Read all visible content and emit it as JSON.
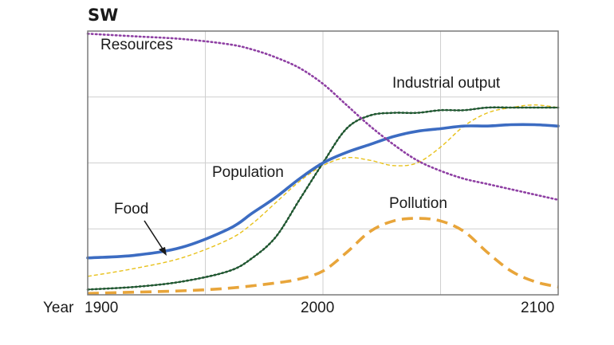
{
  "chart_data": {
    "type": "line",
    "title": "SW",
    "x_axis_label": "Year",
    "xlim": [
      1900,
      2100
    ],
    "ylim": [
      0,
      1
    ],
    "x_ticks": [
      1900,
      2000,
      2100
    ],
    "x_tick_labels": [
      "1900",
      "2000",
      "2100"
    ],
    "grid": true,
    "y_tick_labels_shown": false,
    "legend": "inline labels",
    "series": [
      {
        "name": "Resources",
        "color": "#8e3fa3",
        "style": "dotted",
        "x": [
          1900,
          1920,
          1940,
          1960,
          1970,
          1980,
          1990,
          2000,
          2010,
          2020,
          2030,
          2040,
          2050,
          2060,
          2070,
          2080,
          2090,
          2100
        ],
        "y": [
          0.99,
          0.98,
          0.97,
          0.95,
          0.93,
          0.9,
          0.86,
          0.8,
          0.72,
          0.64,
          0.57,
          0.51,
          0.47,
          0.44,
          0.42,
          0.4,
          0.38,
          0.36
        ]
      },
      {
        "name": "Industrial output",
        "color": "#1f5a31",
        "style": "dotted",
        "x": [
          1900,
          1920,
          1940,
          1960,
          1970,
          1980,
          1990,
          2000,
          2010,
          2020,
          2030,
          2040,
          2050,
          2060,
          2070,
          2080,
          2090,
          2100
        ],
        "y": [
          0.02,
          0.03,
          0.05,
          0.09,
          0.14,
          0.22,
          0.36,
          0.5,
          0.63,
          0.68,
          0.69,
          0.69,
          0.7,
          0.7,
          0.71,
          0.71,
          0.71,
          0.71
        ]
      },
      {
        "name": "Food",
        "color": "#e8c11a",
        "style": "dashed-thin",
        "x": [
          1900,
          1920,
          1940,
          1960,
          1970,
          1980,
          1990,
          2000,
          2010,
          2020,
          2030,
          2040,
          2050,
          2060,
          2070,
          2080,
          2090,
          2100
        ],
        "y": [
          0.07,
          0.1,
          0.14,
          0.21,
          0.27,
          0.35,
          0.43,
          0.49,
          0.52,
          0.51,
          0.49,
          0.5,
          0.56,
          0.64,
          0.69,
          0.71,
          0.72,
          0.71
        ]
      },
      {
        "name": "Population",
        "color": "#3c6cc2",
        "style": "solid",
        "x": [
          1900,
          1920,
          1940,
          1960,
          1970,
          1980,
          1990,
          2000,
          2010,
          2020,
          2030,
          2040,
          2050,
          2060,
          2070,
          2080,
          2090,
          2100
        ],
        "y": [
          0.14,
          0.15,
          0.18,
          0.25,
          0.31,
          0.37,
          0.44,
          0.5,
          0.54,
          0.57,
          0.6,
          0.62,
          0.63,
          0.64,
          0.64,
          0.645,
          0.645,
          0.64
        ]
      },
      {
        "name": "Pollution",
        "color": "#e8a53a",
        "style": "dashed",
        "x": [
          1900,
          1920,
          1940,
          1960,
          1980,
          1990,
          2000,
          2010,
          2020,
          2030,
          2040,
          2050,
          2060,
          2070,
          2080,
          2090,
          2100
        ],
        "y": [
          0.005,
          0.01,
          0.015,
          0.025,
          0.045,
          0.06,
          0.09,
          0.16,
          0.24,
          0.28,
          0.29,
          0.28,
          0.24,
          0.16,
          0.09,
          0.05,
          0.03
        ]
      }
    ],
    "annotations": [
      {
        "text": "Resources",
        "series": "Resources"
      },
      {
        "text": "Industrial output",
        "series": "Industrial output"
      },
      {
        "text": "Population",
        "series": "Population"
      },
      {
        "text": "Food",
        "series": "Food",
        "arrow": true
      },
      {
        "text": "Pollution",
        "series": "Pollution"
      }
    ]
  }
}
